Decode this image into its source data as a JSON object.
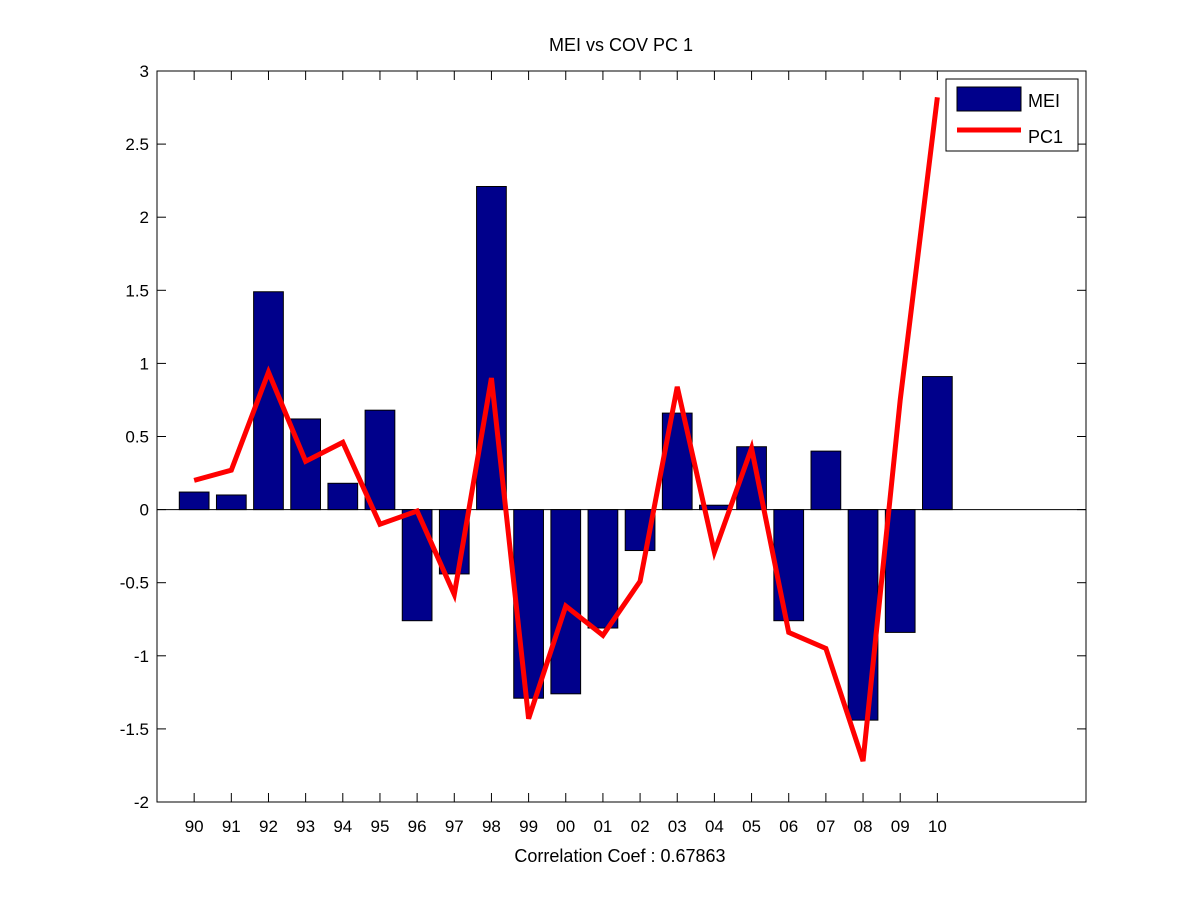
{
  "colors": {
    "bar": "#00008B",
    "line": "#FF0000",
    "axis": "#000000",
    "background": "#FFFFFF"
  },
  "chart_data": {
    "type": "bar",
    "title": "MEI vs COV PC 1",
    "xlabel": "Correlation Coef : 0.67863",
    "ylabel": "",
    "categories": [
      "90",
      "91",
      "92",
      "93",
      "94",
      "95",
      "96",
      "97",
      "98",
      "99",
      "00",
      "01",
      "02",
      "03",
      "04",
      "05",
      "06",
      "07",
      "08",
      "09",
      "10"
    ],
    "xlim": [
      0,
      25
    ],
    "ylim": [
      -2,
      3
    ],
    "yticks": [
      "-2",
      "-1.5",
      "-1",
      "-0.5",
      "0",
      "0.5",
      "1",
      "1.5",
      "2",
      "2.5",
      "3"
    ],
    "grid": false,
    "legend": {
      "placement": "top-right",
      "entries": [
        "MEI",
        "PC1"
      ]
    },
    "series": [
      {
        "name": "MEI",
        "type": "bar",
        "values": [
          0.12,
          0.1,
          1.49,
          0.62,
          0.18,
          0.68,
          -0.76,
          -0.44,
          2.21,
          -1.29,
          -1.26,
          -0.81,
          -0.28,
          0.66,
          0.03,
          0.43,
          -0.76,
          0.4,
          -1.44,
          -0.84,
          0.91
        ]
      },
      {
        "name": "PC1",
        "type": "line",
        "values": [
          0.2,
          0.27,
          0.94,
          0.33,
          0.46,
          -0.1,
          -0.01,
          -0.58,
          0.9,
          -1.43,
          -0.66,
          -0.86,
          -0.49,
          0.84,
          -0.29,
          0.42,
          -0.84,
          -0.95,
          -1.72,
          0.75,
          2.82
        ]
      }
    ]
  }
}
